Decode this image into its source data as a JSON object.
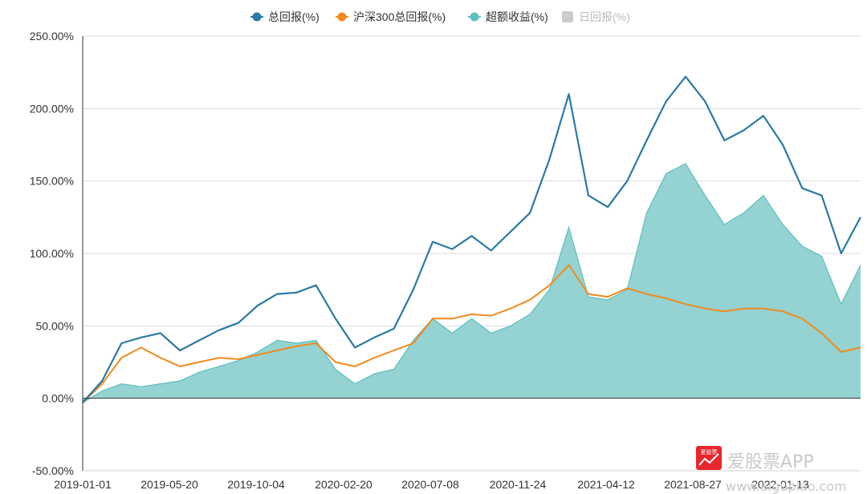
{
  "chart_data": {
    "type": "line",
    "title": "",
    "xlabel": "",
    "ylabel": "",
    "ylim": [
      -50,
      250
    ],
    "y_ticks": [
      "250.00%",
      "200.00%",
      "150.00%",
      "100.00%",
      "50.00%",
      "0.00%",
      "-50.00%"
    ],
    "y_tick_values": [
      250,
      200,
      150,
      100,
      50,
      0,
      -50
    ],
    "x_ticks": [
      "2019-01-01",
      "2019-05-20",
      "2019-10-04",
      "2020-02-20",
      "2020-07-08",
      "2020-11-24",
      "2021-04-12",
      "2021-08-27",
      "2022-01-13"
    ],
    "grid": "horizontal",
    "legend_position": "top-center",
    "legend": [
      {
        "name": "总回报(%)",
        "color": "#2a7aa5",
        "visible": true
      },
      {
        "name": "沪深300总回报(%)",
        "color": "#f18a1c",
        "visible": true
      },
      {
        "name": "超额收益(%)",
        "color": "#5dbfbf",
        "visible": true
      },
      {
        "name": "日回报(%)",
        "color": "#cccccc",
        "visible": false
      }
    ],
    "x": [
      "2019-01-01",
      "2019-02-01",
      "2019-03-01",
      "2019-04-01",
      "2019-05-01",
      "2019-06-01",
      "2019-07-01",
      "2019-08-01",
      "2019-09-01",
      "2019-10-01",
      "2019-11-01",
      "2019-12-01",
      "2020-01-01",
      "2020-02-01",
      "2020-03-01",
      "2020-04-01",
      "2020-05-01",
      "2020-06-01",
      "2020-07-01",
      "2020-08-01",
      "2020-09-01",
      "2020-10-01",
      "2020-11-01",
      "2020-12-01",
      "2021-01-01",
      "2021-02-01",
      "2021-03-01",
      "2021-04-01",
      "2021-05-01",
      "2021-06-01",
      "2021-07-01",
      "2021-08-01",
      "2021-09-01",
      "2021-10-01",
      "2021-11-01",
      "2021-12-01",
      "2022-01-01",
      "2022-02-01",
      "2022-03-01",
      "2022-04-01",
      "2022-05-01"
    ],
    "series": [
      {
        "name": "总回报(%)",
        "color": "#2a7aa5",
        "values": [
          -3,
          12,
          38,
          42,
          45,
          33,
          40,
          47,
          52,
          64,
          72,
          73,
          78,
          55,
          35,
          42,
          48,
          75,
          108,
          103,
          112,
          102,
          115,
          128,
          165,
          210,
          140,
          132,
          150,
          178,
          205,
          222,
          205,
          178,
          185,
          195,
          175,
          145,
          140,
          100,
          125
        ]
      },
      {
        "name": "沪深300总回报(%)",
        "color": "#f18a1c",
        "values": [
          -3,
          10,
          28,
          35,
          28,
          22,
          25,
          28,
          27,
          30,
          33,
          36,
          38,
          25,
          22,
          28,
          33,
          38,
          55,
          55,
          58,
          57,
          62,
          68,
          78,
          92,
          72,
          70,
          76,
          72,
          69,
          65,
          62,
          60,
          62,
          62,
          60,
          55,
          45,
          32,
          35
        ]
      },
      {
        "name": "超额收益(%)",
        "color": "#5dbfbf",
        "values": [
          -3,
          5,
          10,
          8,
          10,
          12,
          18,
          22,
          26,
          32,
          40,
          38,
          40,
          20,
          10,
          17,
          20,
          40,
          55,
          45,
          55,
          45,
          50,
          58,
          75,
          118,
          70,
          68,
          75,
          128,
          155,
          162,
          140,
          120,
          128,
          140,
          120,
          105,
          98,
          65,
          92
        ]
      }
    ]
  },
  "watermark": {
    "logo_text": "爱股票",
    "brand_text": "爱股票APP",
    "url_text": "www.aigupiao.com",
    "logo_color": "#e8262c"
  }
}
